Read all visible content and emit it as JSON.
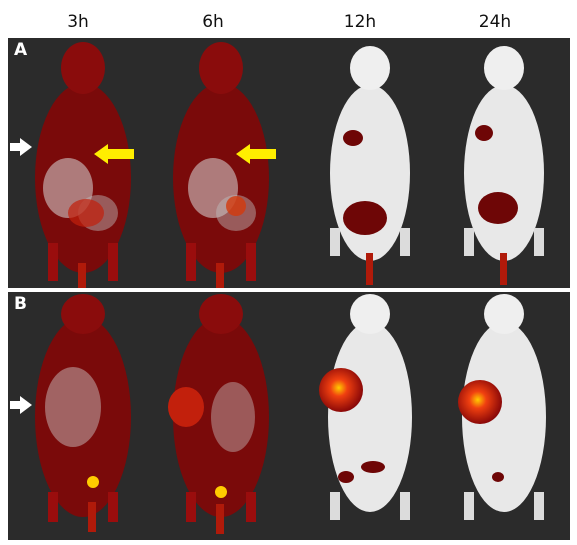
{
  "time_labels": [
    "3h",
    "6h",
    "12h",
    "24h"
  ],
  "panels": [
    {
      "label": "A"
    },
    {
      "label": "B"
    }
  ],
  "colors": {
    "background": "#2b2b2b",
    "signal_dark": "#6e0606",
    "signal_mid": "#b01a0a",
    "signal_hot": "#ffcc00",
    "mouse_body": "#e8e8e8",
    "yellow_arrow": "#ffee00"
  }
}
